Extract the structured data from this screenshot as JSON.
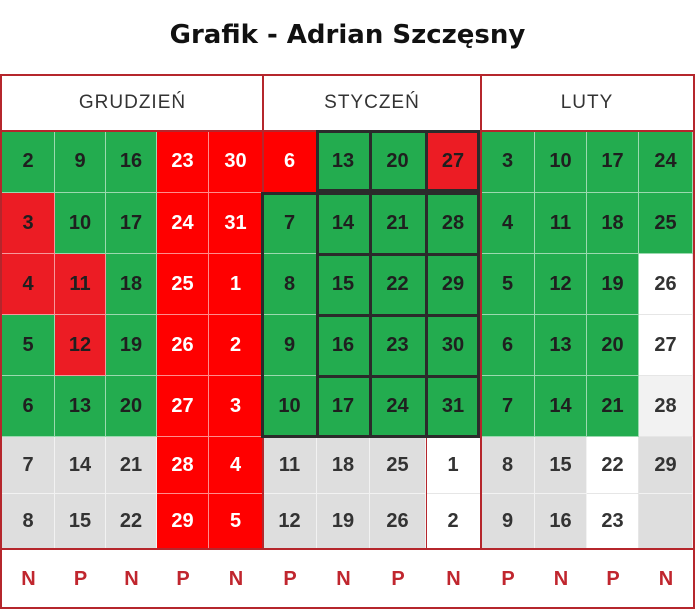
{
  "title": "Grafik - Adrian Szczęsny",
  "months": [
    "GRUDZIEŃ",
    "STYCZEŃ",
    "LUTY"
  ],
  "days": [
    [
      "2",
      "9",
      "16",
      "23",
      "30",
      "6",
      "13",
      "20",
      "27",
      "3",
      "10",
      "17",
      "24"
    ],
    [
      "3",
      "10",
      "17",
      "24",
      "31",
      "7",
      "14",
      "21",
      "28",
      "4",
      "11",
      "18",
      "25"
    ],
    [
      "4",
      "11",
      "18",
      "25",
      "1",
      "8",
      "15",
      "22",
      "29",
      "5",
      "12",
      "19",
      "26"
    ],
    [
      "5",
      "12",
      "19",
      "26",
      "2",
      "9",
      "16",
      "23",
      "30",
      "6",
      "13",
      "20",
      "27"
    ],
    [
      "6",
      "13",
      "20",
      "27",
      "3",
      "10",
      "17",
      "24",
      "31",
      "7",
      "14",
      "21",
      "28"
    ],
    [
      "7",
      "14",
      "21",
      "28",
      "4",
      "11",
      "18",
      "25",
      "1",
      "8",
      "15",
      "22",
      "29"
    ],
    [
      "8",
      "15",
      "22",
      "29",
      "5",
      "12",
      "19",
      "26",
      "2",
      "9",
      "16",
      "23",
      ""
    ]
  ],
  "colors": [
    [
      "green",
      "green",
      "green",
      "red",
      "red",
      "red",
      "green",
      "green",
      "red",
      "green",
      "green",
      "green",
      "green"
    ],
    [
      "red",
      "green",
      "green",
      "red",
      "red",
      "green",
      "green",
      "green",
      "green",
      "green",
      "green",
      "green",
      "green"
    ],
    [
      "red",
      "red",
      "green",
      "red",
      "red",
      "green",
      "green",
      "green",
      "green",
      "green",
      "green",
      "green",
      "white"
    ],
    [
      "green",
      "red",
      "green",
      "red",
      "red",
      "green",
      "green",
      "green",
      "green",
      "green",
      "green",
      "green",
      "white"
    ],
    [
      "green",
      "green",
      "green",
      "red",
      "red",
      "green",
      "green",
      "green",
      "green",
      "green",
      "green",
      "green",
      "lightgrey"
    ],
    [
      "grey",
      "grey",
      "grey",
      "red",
      "red",
      "grey",
      "grey",
      "grey",
      "white",
      "grey",
      "grey",
      "white",
      "grey"
    ],
    [
      "grey",
      "grey",
      "grey",
      "red",
      "red",
      "grey",
      "grey",
      "grey",
      "white",
      "grey",
      "grey",
      "white",
      "grey"
    ]
  ],
  "footer": [
    "N",
    "P",
    "N",
    "P",
    "N",
    "P",
    "N",
    "P",
    "N",
    "P",
    "N",
    "P",
    "N"
  ],
  "palette": {
    "green": "#23ac4f",
    "red": "#ec1c24",
    "grey": "#dedede",
    "border": "#b5262c",
    "dark_frame": "#2b2b2b"
  }
}
